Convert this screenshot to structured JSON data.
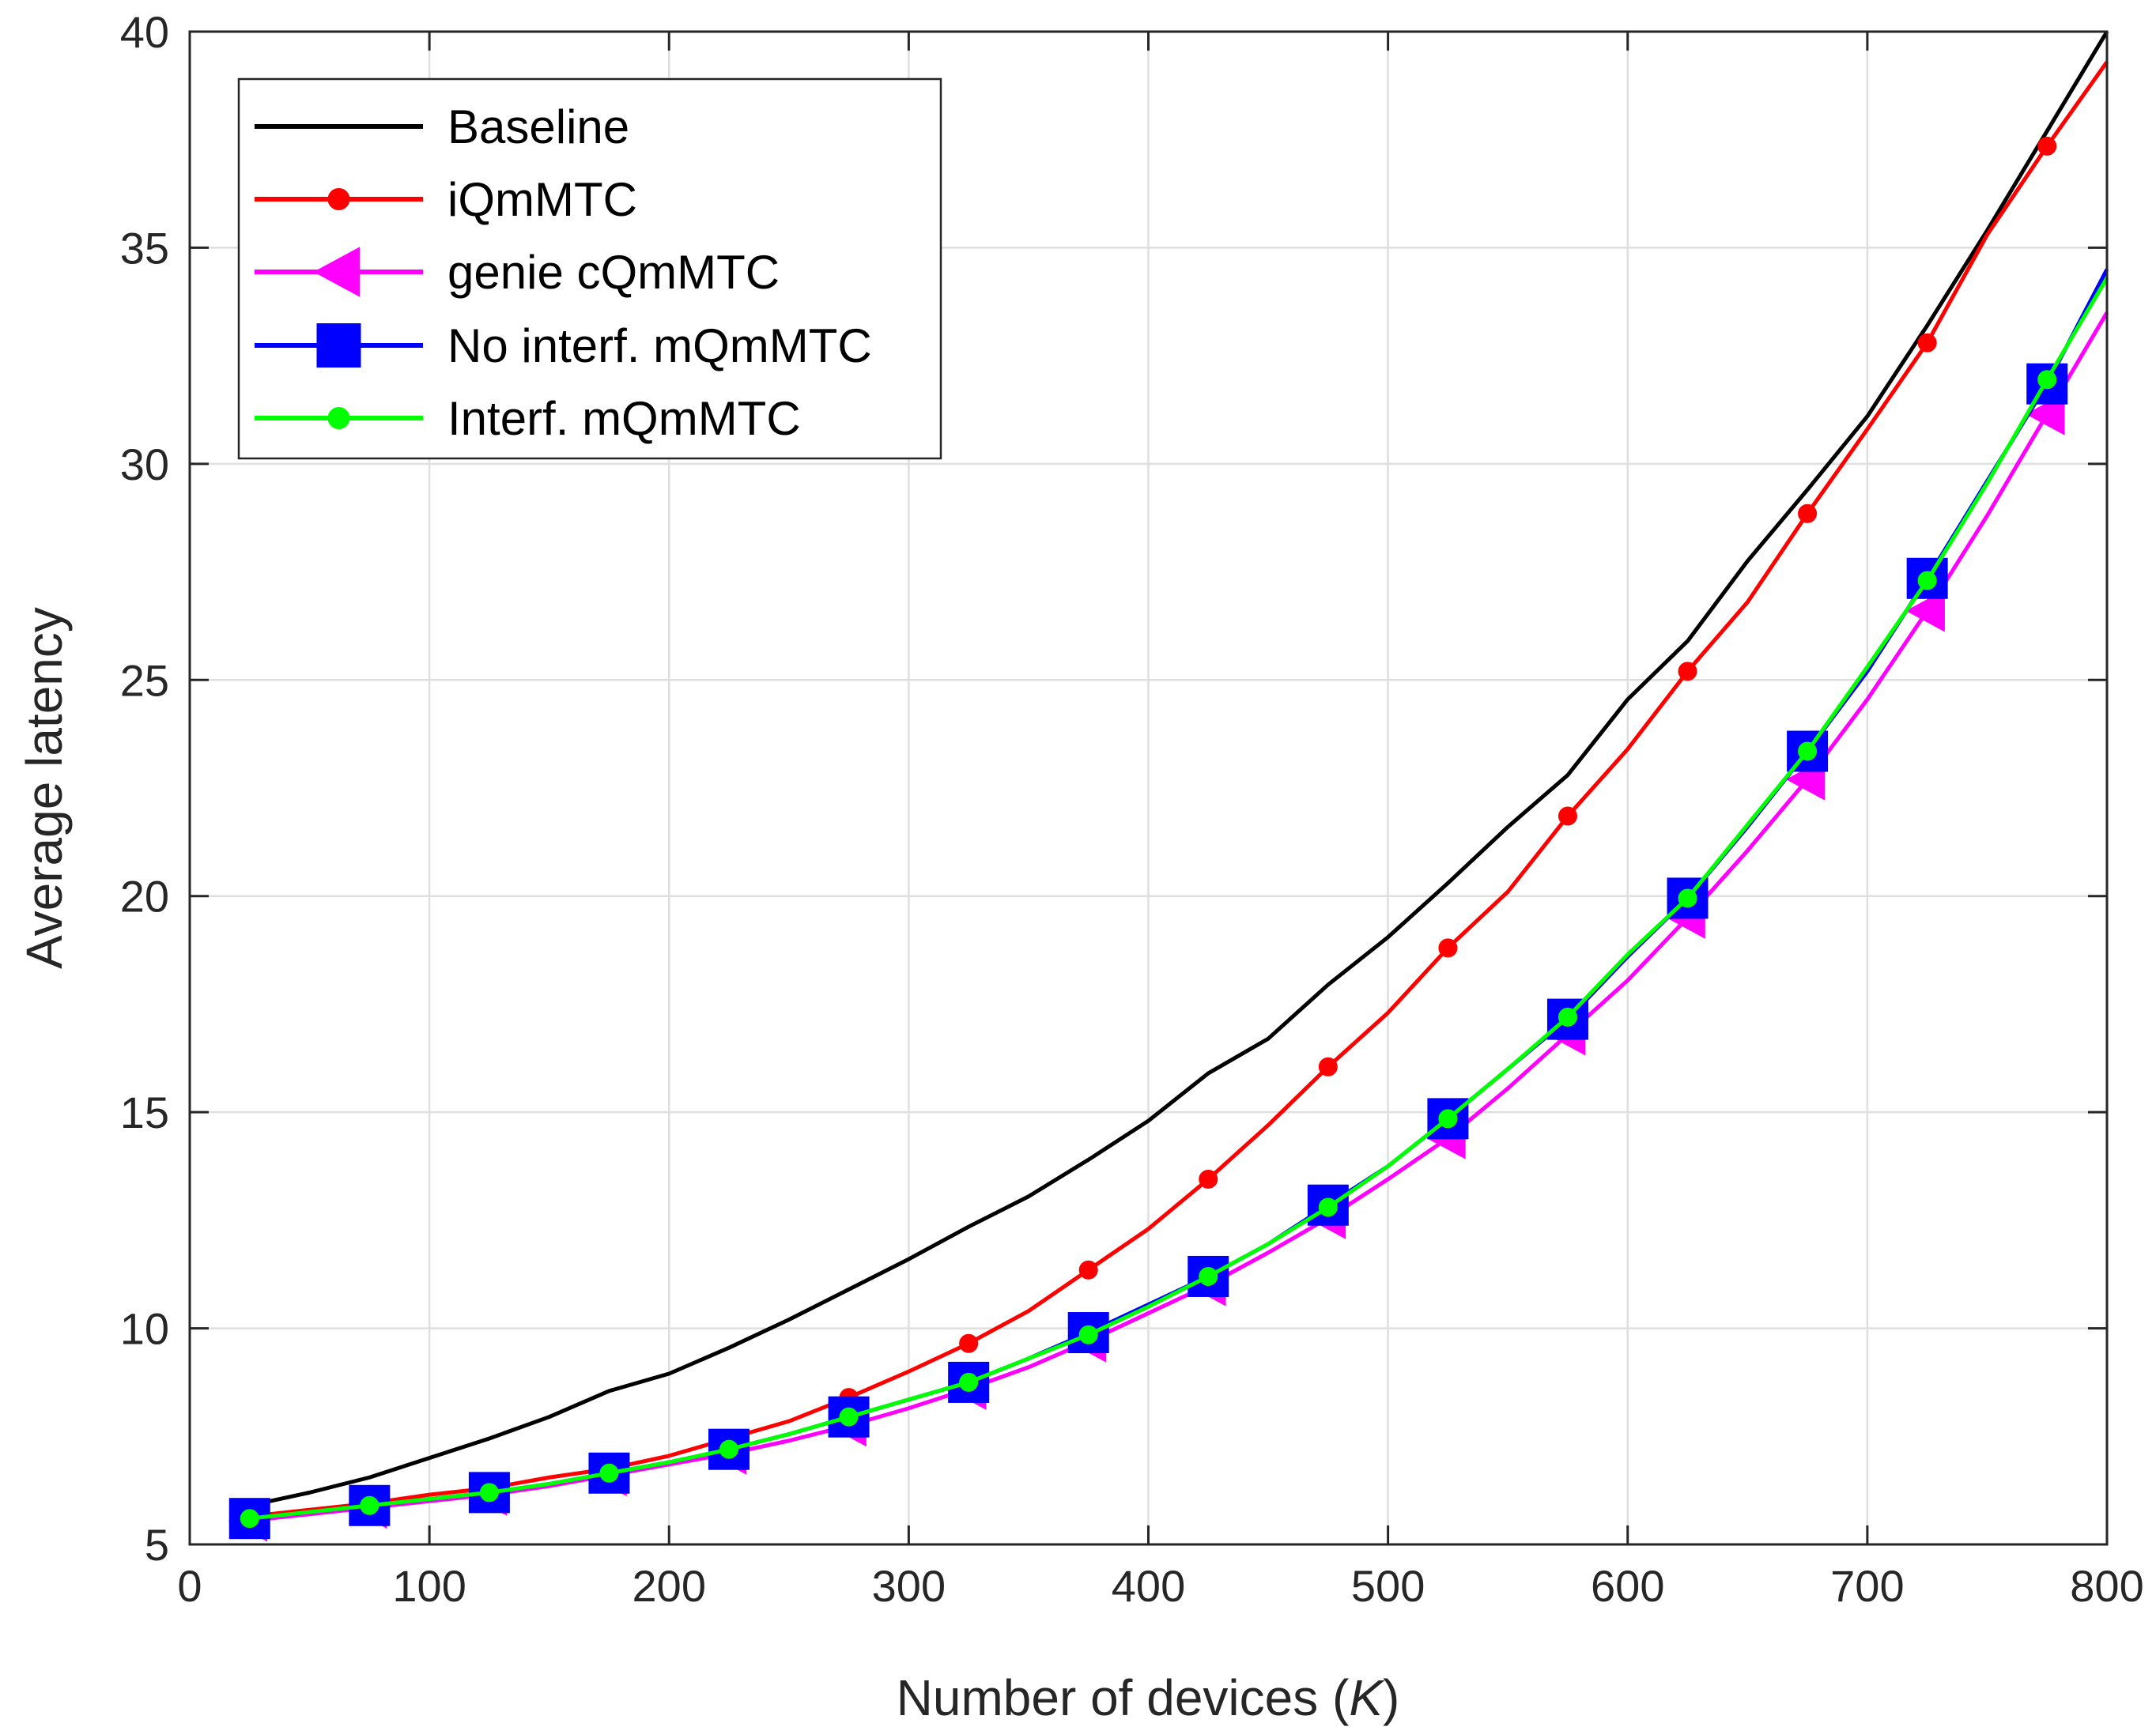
{
  "chart_data": {
    "type": "line",
    "title": "",
    "xlabel": "Number of devices (",
    "xlabel_var": "K",
    "xlabel_close": ")",
    "ylabel": "Average latency",
    "xlim": [
      0,
      800
    ],
    "ylim": [
      5,
      40
    ],
    "xticks": [
      0,
      100,
      200,
      300,
      400,
      500,
      600,
      700,
      800
    ],
    "yticks": [
      5,
      10,
      15,
      20,
      25,
      30,
      35,
      40
    ],
    "grid": true,
    "legend_position": "top-left",
    "series": [
      {
        "name": "Baseline",
        "color": "#000000",
        "marker": "none",
        "x": [
          25,
          50,
          75,
          100,
          125,
          150,
          175,
          200,
          225,
          250,
          275,
          300,
          325,
          350,
          375,
          400,
          425,
          450,
          475,
          500,
          525,
          550,
          575,
          600,
          625,
          650,
          675,
          700,
          725,
          750,
          775,
          800
        ],
        "y": [
          5.9,
          6.2,
          6.55,
          7.0,
          7.45,
          7.95,
          8.55,
          8.95,
          9.55,
          10.2,
          10.9,
          11.6,
          12.35,
          13.05,
          13.9,
          14.8,
          15.9,
          16.7,
          17.95,
          19.05,
          20.3,
          21.6,
          22.8,
          24.55,
          25.9,
          27.75,
          29.4,
          31.1,
          33.2,
          35.4,
          37.7,
          40.0
        ]
      },
      {
        "name": "iQmMTC",
        "color": "#ff0000",
        "marker": "circle",
        "x": [
          25,
          50,
          75,
          100,
          125,
          150,
          175,
          200,
          225,
          250,
          275,
          300,
          325,
          350,
          375,
          400,
          425,
          450,
          475,
          500,
          525,
          550,
          575,
          600,
          625,
          650,
          675,
          700,
          725,
          750,
          775,
          800
        ],
        "y": [
          5.65,
          5.8,
          5.95,
          6.15,
          6.3,
          6.55,
          6.75,
          7.05,
          7.45,
          7.85,
          8.4,
          9.0,
          9.65,
          10.4,
          11.35,
          12.3,
          13.45,
          14.7,
          16.05,
          17.3,
          18.8,
          20.1,
          21.85,
          23.4,
          25.2,
          26.8,
          28.85,
          30.8,
          32.8,
          35.3,
          37.35,
          39.3
        ]
      },
      {
        "name": "genie cQmMTC",
        "color": "#ff00ff",
        "marker": "triangle-left",
        "x": [
          25,
          50,
          75,
          100,
          125,
          150,
          175,
          200,
          225,
          250,
          275,
          300,
          325,
          350,
          375,
          400,
          425,
          450,
          475,
          500,
          525,
          550,
          575,
          600,
          625,
          650,
          675,
          700,
          725,
          750,
          775,
          800
        ],
        "y": [
          5.55,
          5.7,
          5.85,
          6.0,
          6.15,
          6.35,
          6.6,
          6.85,
          7.1,
          7.4,
          7.75,
          8.15,
          8.6,
          9.1,
          9.7,
          10.35,
          11.0,
          11.75,
          12.55,
          13.45,
          14.4,
          15.55,
          16.8,
          18.05,
          19.5,
          21.05,
          22.7,
          24.55,
          26.6,
          28.8,
          31.15,
          33.5
        ]
      },
      {
        "name": "No interf. mQmMTC",
        "color": "#0000ff",
        "marker": "square",
        "x": [
          25,
          50,
          75,
          100,
          125,
          150,
          175,
          200,
          225,
          250,
          275,
          300,
          325,
          350,
          375,
          400,
          425,
          450,
          475,
          500,
          525,
          550,
          575,
          600,
          625,
          650,
          675,
          700,
          725,
          750,
          775,
          800
        ],
        "y": [
          5.6,
          5.75,
          5.9,
          6.05,
          6.2,
          6.4,
          6.65,
          6.9,
          7.2,
          7.55,
          7.95,
          8.35,
          8.75,
          9.3,
          9.9,
          10.55,
          11.2,
          11.95,
          12.85,
          13.75,
          14.85,
          16.0,
          17.15,
          18.6,
          19.95,
          21.6,
          23.35,
          25.2,
          27.35,
          29.6,
          31.85,
          34.5
        ]
      },
      {
        "name": "Interf. mQmMTC",
        "color": "#00ff00",
        "marker": "circle",
        "x": [
          25,
          50,
          75,
          100,
          125,
          150,
          175,
          200,
          225,
          250,
          275,
          300,
          325,
          350,
          375,
          400,
          425,
          450,
          475,
          500,
          525,
          550,
          575,
          600,
          625,
          650,
          675,
          700,
          725,
          750,
          775,
          800
        ],
        "y": [
          5.6,
          5.75,
          5.9,
          6.05,
          6.2,
          6.4,
          6.65,
          6.9,
          7.2,
          7.55,
          7.95,
          8.35,
          8.75,
          9.3,
          9.85,
          10.5,
          11.2,
          11.95,
          12.8,
          13.75,
          14.85,
          16.0,
          17.2,
          18.65,
          19.95,
          21.65,
          23.35,
          25.3,
          27.3,
          29.55,
          31.95,
          34.3
        ]
      }
    ]
  }
}
